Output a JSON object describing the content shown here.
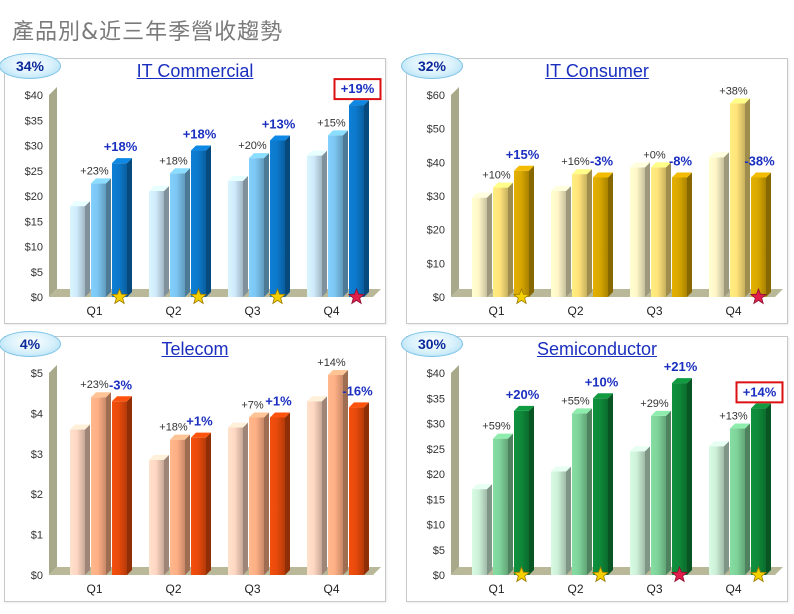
{
  "page": {
    "title": "產品別&近三年季營收趨勢"
  },
  "panels": [
    {
      "title": "IT Commercial",
      "share": "34%",
      "chart_data": {
        "type": "bar",
        "title": "IT Commercial",
        "categories": [
          "Q1",
          "Q2",
          "Q3",
          "Q4"
        ],
        "ylim": [
          0,
          40
        ],
        "yticks": [
          "$0",
          "$5",
          "$10",
          "$15",
          "$20",
          "$25",
          "$30",
          "$35",
          "$40"
        ],
        "series": [
          {
            "values": [
              18,
              21,
              23,
              28
            ]
          },
          {
            "values": [
              22.5,
              24.5,
              27.5,
              32
            ]
          },
          {
            "values": [
              26.5,
              29,
              31,
              38
            ]
          }
        ],
        "yoy_labels": [
          "+23%",
          "+18%",
          "+20%",
          "+15%"
        ],
        "qoq_labels": [
          "+18%",
          "+18%",
          "+13%",
          "+19%"
        ],
        "qoq_highlight": [
          false,
          false,
          false,
          true
        ],
        "markers": [
          "gold",
          "gold",
          "gold",
          "red"
        ],
        "colors": {
          "light": "#cfeafb",
          "mid": "#7cc6f2",
          "dark": "#0c79cc"
        }
      }
    },
    {
      "title": "IT Consumer",
      "share": "32%",
      "chart_data": {
        "type": "bar",
        "title": "IT Consumer",
        "categories": [
          "Q1",
          "Q2",
          "Q3",
          "Q4"
        ],
        "ylim": [
          0,
          60
        ],
        "yticks": [
          "$0",
          "$10",
          "$20",
          "$30",
          "$40",
          "$50",
          "$60"
        ],
        "series": [
          {
            "values": [
              29.5,
              31.5,
              38.5,
              41.5
            ]
          },
          {
            "values": [
              32.5,
              36.5,
              38.5,
              57.5
            ]
          },
          {
            "values": [
              37.5,
              35.5,
              35.5,
              35.5
            ]
          }
        ],
        "yoy_labels": [
          "+10%",
          "+16%",
          "+0%",
          "+38%"
        ],
        "qoq_labels": [
          "+15%",
          "-3%",
          "-8%",
          "-38%"
        ],
        "qoq_highlight": [
          false,
          false,
          false,
          false
        ],
        "markers": [
          "gold",
          "none",
          "none",
          "red"
        ],
        "colors": {
          "light": "#fff6c8",
          "mid": "#ffe37a",
          "dark": "#d9a800"
        }
      }
    },
    {
      "title": "Telecom",
      "share": "4%",
      "chart_data": {
        "type": "bar",
        "title": "Telecom",
        "categories": [
          "Q1",
          "Q2",
          "Q3",
          "Q4"
        ],
        "ylim": [
          0,
          5
        ],
        "yticks": [
          "$0",
          "$1",
          "$2",
          "$3",
          "$4",
          "$5"
        ],
        "series": [
          {
            "values": [
              3.6,
              2.85,
              3.65,
              4.3
            ]
          },
          {
            "values": [
              4.4,
              3.35,
              3.9,
              4.95
            ]
          },
          {
            "values": [
              4.3,
              3.4,
              3.9,
              4.15
            ]
          }
        ],
        "yoy_labels": [
          "+23%",
          "+18%",
          "+7%",
          "+14%"
        ],
        "qoq_labels": [
          "-3%",
          "+1%",
          "+1%",
          "-16%"
        ],
        "qoq_highlight": [
          false,
          false,
          false,
          false
        ],
        "markers": [
          "none",
          "none",
          "none",
          "none"
        ],
        "colors": {
          "light": "#ffd7c2",
          "mid": "#ffaf85",
          "dark": "#e84a0c"
        }
      }
    },
    {
      "title": "Semiconductor",
      "share": "30%",
      "chart_data": {
        "type": "bar",
        "title": "Semiconductor",
        "categories": [
          "Q1",
          "Q2",
          "Q3",
          "Q4"
        ],
        "ylim": [
          0,
          40
        ],
        "yticks": [
          "$0",
          "$5",
          "$10",
          "$15",
          "$20",
          "$25",
          "$30",
          "$35",
          "$40"
        ],
        "series": [
          {
            "values": [
              17,
              20.5,
              24.5,
              25.5
            ]
          },
          {
            "values": [
              27,
              32,
              31.5,
              29
            ]
          },
          {
            "values": [
              32.5,
              35,
              38,
              33
            ]
          }
        ],
        "yoy_labels": [
          "+59%",
          "+55%",
          "+29%",
          "+13%"
        ],
        "qoq_labels": [
          "+20%",
          "+10%",
          "+21%",
          "+14%"
        ],
        "qoq_highlight": [
          false,
          false,
          false,
          true
        ],
        "markers": [
          "gold",
          "gold",
          "red",
          "gold"
        ],
        "colors": {
          "light": "#cdf0d8",
          "mid": "#7fd39a",
          "dark": "#0e8a3a"
        }
      }
    }
  ]
}
